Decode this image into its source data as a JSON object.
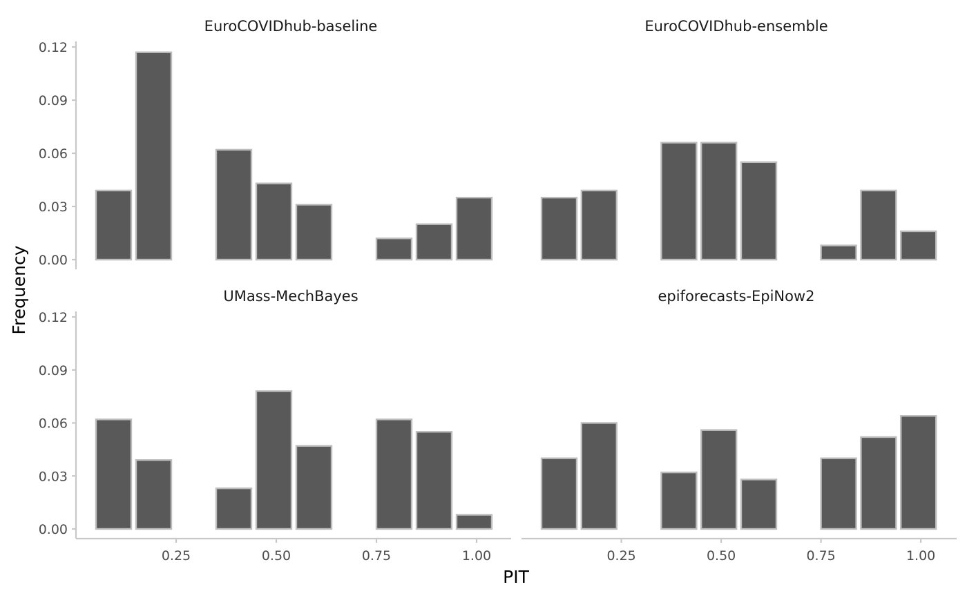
{
  "chart_data": {
    "type": "bar",
    "layout": "facet grid, 2 columns x 2 rows, shared axes",
    "xlabel": "PIT",
    "ylabel": "Frequency",
    "xlim": [
      0,
      1.05
    ],
    "ylim": [
      0,
      0.12
    ],
    "x_ticks": [
      "0.25",
      "0.50",
      "0.75",
      "1.00"
    ],
    "y_ticks": [
      "0.00",
      "0.03",
      "0.06",
      "0.09",
      "0.12"
    ],
    "bin_width": 0.1,
    "bin_centers": [
      0.1,
      0.2,
      0.3,
      0.4,
      0.5,
      0.6,
      0.7,
      0.8,
      0.9,
      1.0
    ],
    "bar_fill": "#595959",
    "bar_outline": "#bdbdbd",
    "grid": false,
    "legend": "none",
    "panels": [
      {
        "title": "EuroCOVIDhub-baseline",
        "values": [
          0.039,
          0.117,
          0,
          0.062,
          0.043,
          0.031,
          0,
          0.012,
          0.02,
          0.035
        ]
      },
      {
        "title": "EuroCOVIDhub-ensemble",
        "values": [
          0.035,
          0.039,
          0,
          0.066,
          0.066,
          0.055,
          0,
          0.008,
          0.039,
          0.016
        ]
      },
      {
        "title": "UMass-MechBayes",
        "values": [
          0.062,
          0.039,
          0,
          0.023,
          0.078,
          0.047,
          0,
          0.062,
          0.055,
          0.008
        ]
      },
      {
        "title": "epiforecasts-EpiNow2",
        "values": [
          0.04,
          0.06,
          0,
          0.032,
          0.056,
          0.028,
          0,
          0.04,
          0.052,
          0.064
        ]
      }
    ]
  }
}
